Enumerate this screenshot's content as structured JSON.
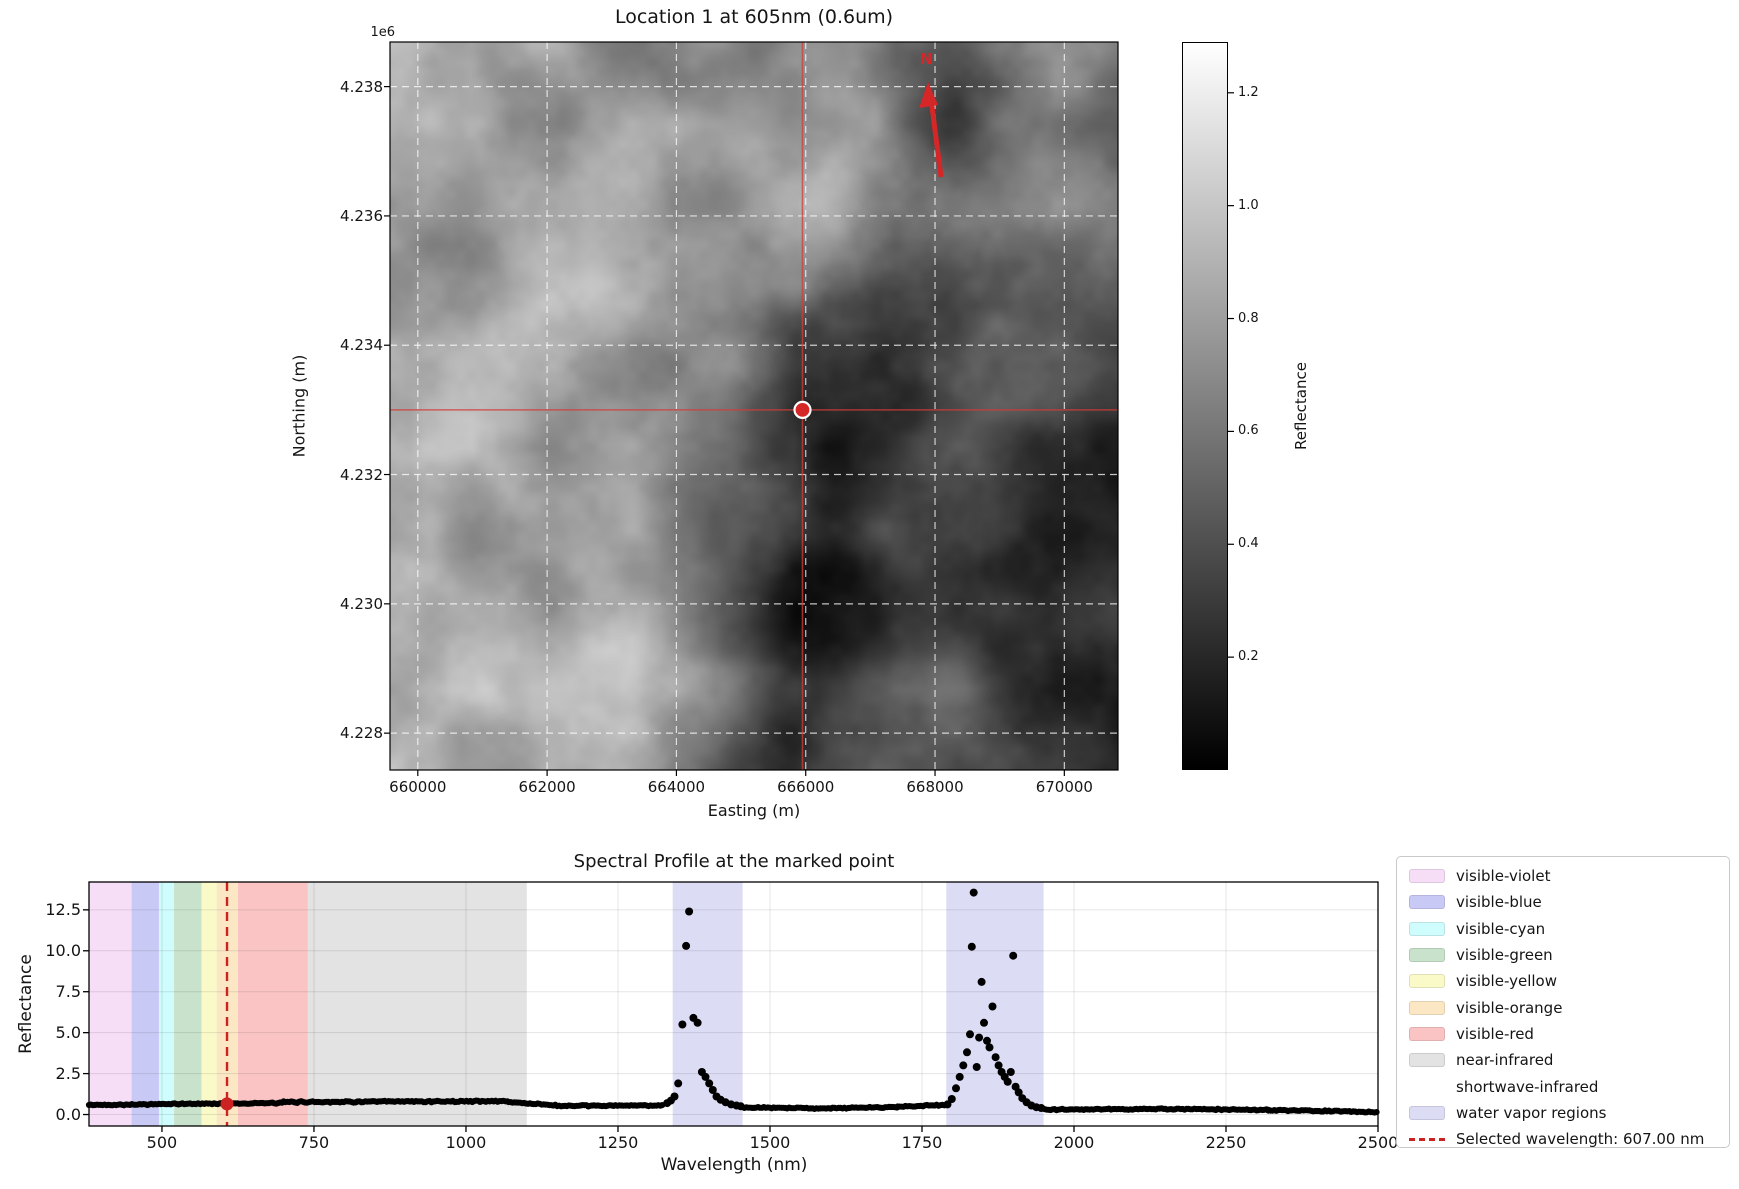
{
  "map": {
    "title": "Location 1 at 605nm (0.6um)",
    "offset_label": "1e6",
    "xlabel": "Easting (m)",
    "ylabel": "Northing (m)",
    "north_label": "N",
    "xticks": [
      "660000",
      "662000",
      "664000",
      "666000",
      "668000",
      "670000"
    ],
    "yticks": [
      "4.238",
      "4.236",
      "4.234",
      "4.232",
      "4.230",
      "4.228"
    ],
    "colorbar": {
      "label": "Reflectance",
      "ticks": [
        "1.2",
        "1.0",
        "0.8",
        "0.6",
        "0.4",
        "0.2"
      ]
    }
  },
  "spectral": {
    "title": "Spectral Profile at the marked point",
    "xlabel": "Wavelength (nm)",
    "ylabel": "Reflectance",
    "xticks": [
      "500",
      "750",
      "1000",
      "1250",
      "1500",
      "1750",
      "2000",
      "2250",
      "2500"
    ],
    "yticks": [
      "0.0",
      "2.5",
      "5.0",
      "7.5",
      "10.0",
      "12.5"
    ]
  },
  "legend": {
    "items": [
      {
        "label": "visible-violet",
        "swatch": "#f6def6",
        "type": "patch"
      },
      {
        "label": "visible-blue",
        "swatch": "#c9c9f5",
        "type": "patch"
      },
      {
        "label": "visible-cyan",
        "swatch": "#cffcfc",
        "type": "patch"
      },
      {
        "label": "visible-green",
        "swatch": "#c8e2cb",
        "type": "patch"
      },
      {
        "label": "visible-yellow",
        "swatch": "#fafac9",
        "type": "patch"
      },
      {
        "label": "visible-orange",
        "swatch": "#fbe7c4",
        "type": "patch"
      },
      {
        "label": "visible-red",
        "swatch": "#fac4c4",
        "type": "patch"
      },
      {
        "label": "near-infrared",
        "swatch": "#e3e3e3",
        "type": "patch"
      },
      {
        "label": "shortwave-infrared",
        "swatch": "",
        "type": "none"
      },
      {
        "label": "water vapor regions",
        "swatch": "#dcdcf5",
        "type": "patch"
      },
      {
        "label": "Selected wavelength: 607.00 nm",
        "swatch": "#cc2222",
        "type": "dashed-line"
      }
    ]
  },
  "colors": {
    "accent_red": "#d62728",
    "selected_line": "#cc2222",
    "crosshair": "rgba(210,60,55,0.75)",
    "grid_map": "rgba(255,255,255,0.75)",
    "grid_spec": "rgba(0,0,0,0.10)",
    "marker_black": "#000000"
  },
  "chart_data": [
    {
      "type": "heatmap",
      "title": "Location 1 at 605nm (0.6um)",
      "xlabel": "Easting (m)",
      "ylabel": "Northing (m)",
      "xlim": [
        659570,
        670830
      ],
      "ylim": [
        4227430,
        4238690
      ],
      "xticks": [
        660000,
        662000,
        664000,
        666000,
        668000,
        670000
      ],
      "yticks": [
        4238000,
        4236000,
        4234000,
        4232000,
        4230000,
        4228000
      ],
      "y_offset_factor": "1e6",
      "grid": true,
      "crosshair": true,
      "marked_point": {
        "easting": 665950,
        "northing": 4233000
      },
      "north_arrow": true,
      "colorbar": {
        "label": "Reflectance",
        "ticks": [
          1.2,
          1.0,
          0.8,
          0.6,
          0.4,
          0.2
        ],
        "vmin": 0.0,
        "vmax": 1.29,
        "cmap": "gray"
      }
    },
    {
      "type": "scatter",
      "title": "Spectral Profile at the marked point",
      "xlabel": "Wavelength (nm)",
      "ylabel": "Reflectance",
      "xlim": [
        380,
        2500
      ],
      "ylim": [
        -0.7,
        14.2
      ],
      "xticks": [
        500,
        750,
        1000,
        1250,
        1500,
        1750,
        2000,
        2250,
        2500
      ],
      "yticks": [
        0.0,
        2.5,
        5.0,
        7.5,
        10.0,
        12.5
      ],
      "grid": true,
      "legend_position": "outside-right",
      "selected_wavelength_nm": 607.0,
      "selected_point": [
        607,
        0.65
      ],
      "bands": [
        {
          "name": "visible-violet",
          "ranges": [
            [
              380,
              450
            ]
          ],
          "color": "#f6def6"
        },
        {
          "name": "visible-blue",
          "ranges": [
            [
              450,
              495
            ]
          ],
          "color": "#c9c9f5"
        },
        {
          "name": "visible-cyan",
          "ranges": [
            [
              495,
              520
            ]
          ],
          "color": "#cffcfc"
        },
        {
          "name": "visible-green",
          "ranges": [
            [
              520,
              565
            ]
          ],
          "color": "#c8e2cb"
        },
        {
          "name": "visible-yellow",
          "ranges": [
            [
              565,
              590
            ]
          ],
          "color": "#fafac9"
        },
        {
          "name": "visible-orange",
          "ranges": [
            [
              590,
              625
            ]
          ],
          "color": "#fbe7c4"
        },
        {
          "name": "visible-red",
          "ranges": [
            [
              625,
              740
            ]
          ],
          "color": "#fac4c4"
        },
        {
          "name": "near-infrared",
          "ranges": [
            [
              740,
              1100
            ]
          ],
          "color": "#e3e3e3"
        },
        {
          "name": "shortwave-infrared",
          "ranges": [
            [
              1100,
              2500
            ]
          ],
          "color": "none"
        },
        {
          "name": "water vapor regions",
          "ranges": [
            [
              1340,
              1455
            ],
            [
              1790,
              1950
            ]
          ],
          "color": "#dcdcf5"
        }
      ],
      "series": [
        {
          "name": "spectrum",
          "marker_color": "#000000",
          "baseline_segments": [
            [
              380,
              560,
              0.58,
              0.66,
              0.05
            ],
            [
              560,
              700,
              0.66,
              0.7,
              0.05
            ],
            [
              700,
              1070,
              0.76,
              0.82,
              0.06
            ],
            [
              1070,
              1150,
              0.76,
              0.56,
              0.05
            ],
            [
              1150,
              1325,
              0.52,
              0.56,
              0.05
            ],
            [
              1458,
              1600,
              0.42,
              0.38,
              0.05
            ],
            [
              1600,
              1710,
              0.38,
              0.46,
              0.05
            ],
            [
              1710,
              1788,
              0.48,
              0.58,
              0.05
            ],
            [
              1952,
              2150,
              0.3,
              0.34,
              0.05
            ],
            [
              2150,
              2320,
              0.34,
              0.28,
              0.05
            ],
            [
              2320,
              2440,
              0.26,
              0.2,
              0.05
            ],
            [
              2440,
              2500,
              0.2,
              0.14,
              0.04
            ]
          ],
          "points": [
            [
              1331,
              0.7
            ],
            [
              1337,
              0.85
            ],
            [
              1343,
              1.1
            ],
            [
              1349,
              1.9
            ],
            [
              1356,
              5.5
            ],
            [
              1362,
              10.3
            ],
            [
              1367,
              12.4
            ],
            [
              1374,
              5.9
            ],
            [
              1381,
              5.6
            ],
            [
              1388,
              2.6
            ],
            [
              1394,
              2.3
            ],
            [
              1400,
              1.9
            ],
            [
              1406,
              1.5
            ],
            [
              1412,
              1.1
            ],
            [
              1419,
              0.9
            ],
            [
              1427,
              0.75
            ],
            [
              1436,
              0.62
            ],
            [
              1445,
              0.55
            ],
            [
              1452,
              0.5
            ],
            [
              1792,
              0.62
            ],
            [
              1799,
              0.95
            ],
            [
              1806,
              1.6
            ],
            [
              1812,
              2.3
            ],
            [
              1818,
              3.0
            ],
            [
              1824,
              3.8
            ],
            [
              1829,
              4.9
            ],
            [
              1832,
              10.25
            ],
            [
              1835,
              13.55
            ],
            [
              1840,
              2.9
            ],
            [
              1844,
              4.7
            ],
            [
              1848,
              8.1
            ],
            [
              1852,
              5.6
            ],
            [
              1857,
              4.5
            ],
            [
              1861,
              4.1
            ],
            [
              1866,
              6.6
            ],
            [
              1871,
              3.5
            ],
            [
              1876,
              3.0
            ],
            [
              1881,
              2.6
            ],
            [
              1886,
              2.3
            ],
            [
              1891,
              2.0
            ],
            [
              1896,
              2.6
            ],
            [
              1900,
              9.7
            ],
            [
              1904,
              1.7
            ],
            [
              1909,
              1.35
            ],
            [
              1915,
              1.0
            ],
            [
              1922,
              0.75
            ],
            [
              1930,
              0.55
            ],
            [
              1938,
              0.45
            ],
            [
              1946,
              0.4
            ]
          ]
        }
      ]
    }
  ]
}
